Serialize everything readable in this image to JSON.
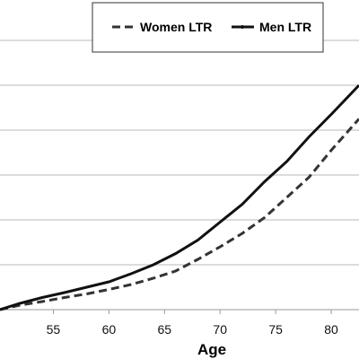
{
  "chart_data": {
    "type": "line",
    "title": "",
    "xlabel": "Age",
    "ylabel": "",
    "x_ticks": [
      55,
      60,
      65,
      70,
      75,
      80
    ],
    "xlim": [
      50.2,
      82.5
    ],
    "ylim": [
      0,
      6
    ],
    "grid": true,
    "legend_position": "top",
    "series": [
      {
        "name": "Women LTR",
        "style": "dashed",
        "color": "#333333",
        "x": [
          50.2,
          52,
          54,
          56,
          58,
          60,
          62,
          64,
          66,
          68,
          70,
          72,
          74,
          76,
          78,
          80,
          82.5
        ],
        "y": [
          0.0,
          0.1,
          0.18,
          0.27,
          0.35,
          0.45,
          0.56,
          0.7,
          0.86,
          1.12,
          1.4,
          1.7,
          2.05,
          2.5,
          2.95,
          3.55,
          4.25
        ]
      },
      {
        "name": "Men LTR",
        "style": "solid",
        "color": "#111111",
        "x": [
          50.2,
          52,
          54,
          56,
          58,
          60,
          62,
          64,
          66,
          68,
          70,
          72,
          74,
          76,
          78,
          80,
          82.5
        ],
        "y": [
          0.0,
          0.14,
          0.27,
          0.38,
          0.5,
          0.62,
          0.8,
          1.0,
          1.25,
          1.55,
          1.95,
          2.35,
          2.85,
          3.3,
          3.85,
          4.35,
          5.0
        ]
      }
    ]
  }
}
